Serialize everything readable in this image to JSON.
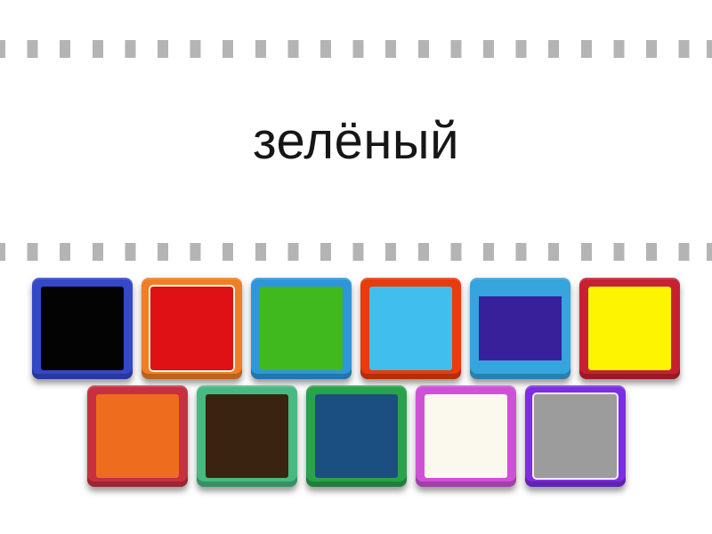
{
  "prompt": {
    "word": "зелёный"
  },
  "decor": {
    "background_color": "#ffffff",
    "dash_color": "#b4b4b4",
    "text_color": "#161616"
  },
  "tiles": {
    "rows": [
      [
        {
          "id": "black-square",
          "border_color": "#3448c8",
          "fill_color": "#030303"
        },
        {
          "id": "red-square",
          "border_color": "#f07e26",
          "fill_color": "#e01114",
          "outline_color": "#fcf7e4"
        },
        {
          "id": "green-square",
          "border_color": "#3096db",
          "fill_color": "#3fb91d"
        },
        {
          "id": "light-blue-square",
          "border_color": "#e73c0e",
          "fill_color": "#40bfee"
        },
        {
          "id": "dark-blue-square",
          "border_color": "#36a4dd",
          "fill_color": "#38209b",
          "inset_fill": true
        },
        {
          "id": "yellow-square",
          "border_color": "#c52133",
          "fill_color": "#fdf402"
        }
      ],
      [
        {
          "id": "orange-square",
          "border_color": "#c73040",
          "fill_color": "#ee6c1e"
        },
        {
          "id": "brown-square",
          "border_color": "#47b981",
          "fill_color": "#3a2411"
        },
        {
          "id": "navy-square",
          "border_color": "#2aa24b",
          "fill_color": "#1b4f81"
        },
        {
          "id": "white-square",
          "border_color": "#cf52d6",
          "fill_color": "#fbf9ee"
        },
        {
          "id": "gray-square",
          "border_color": "#7c2ee1",
          "fill_color": "#9c9c9c",
          "outline_color": "#f2ecfc"
        }
      ]
    ]
  }
}
